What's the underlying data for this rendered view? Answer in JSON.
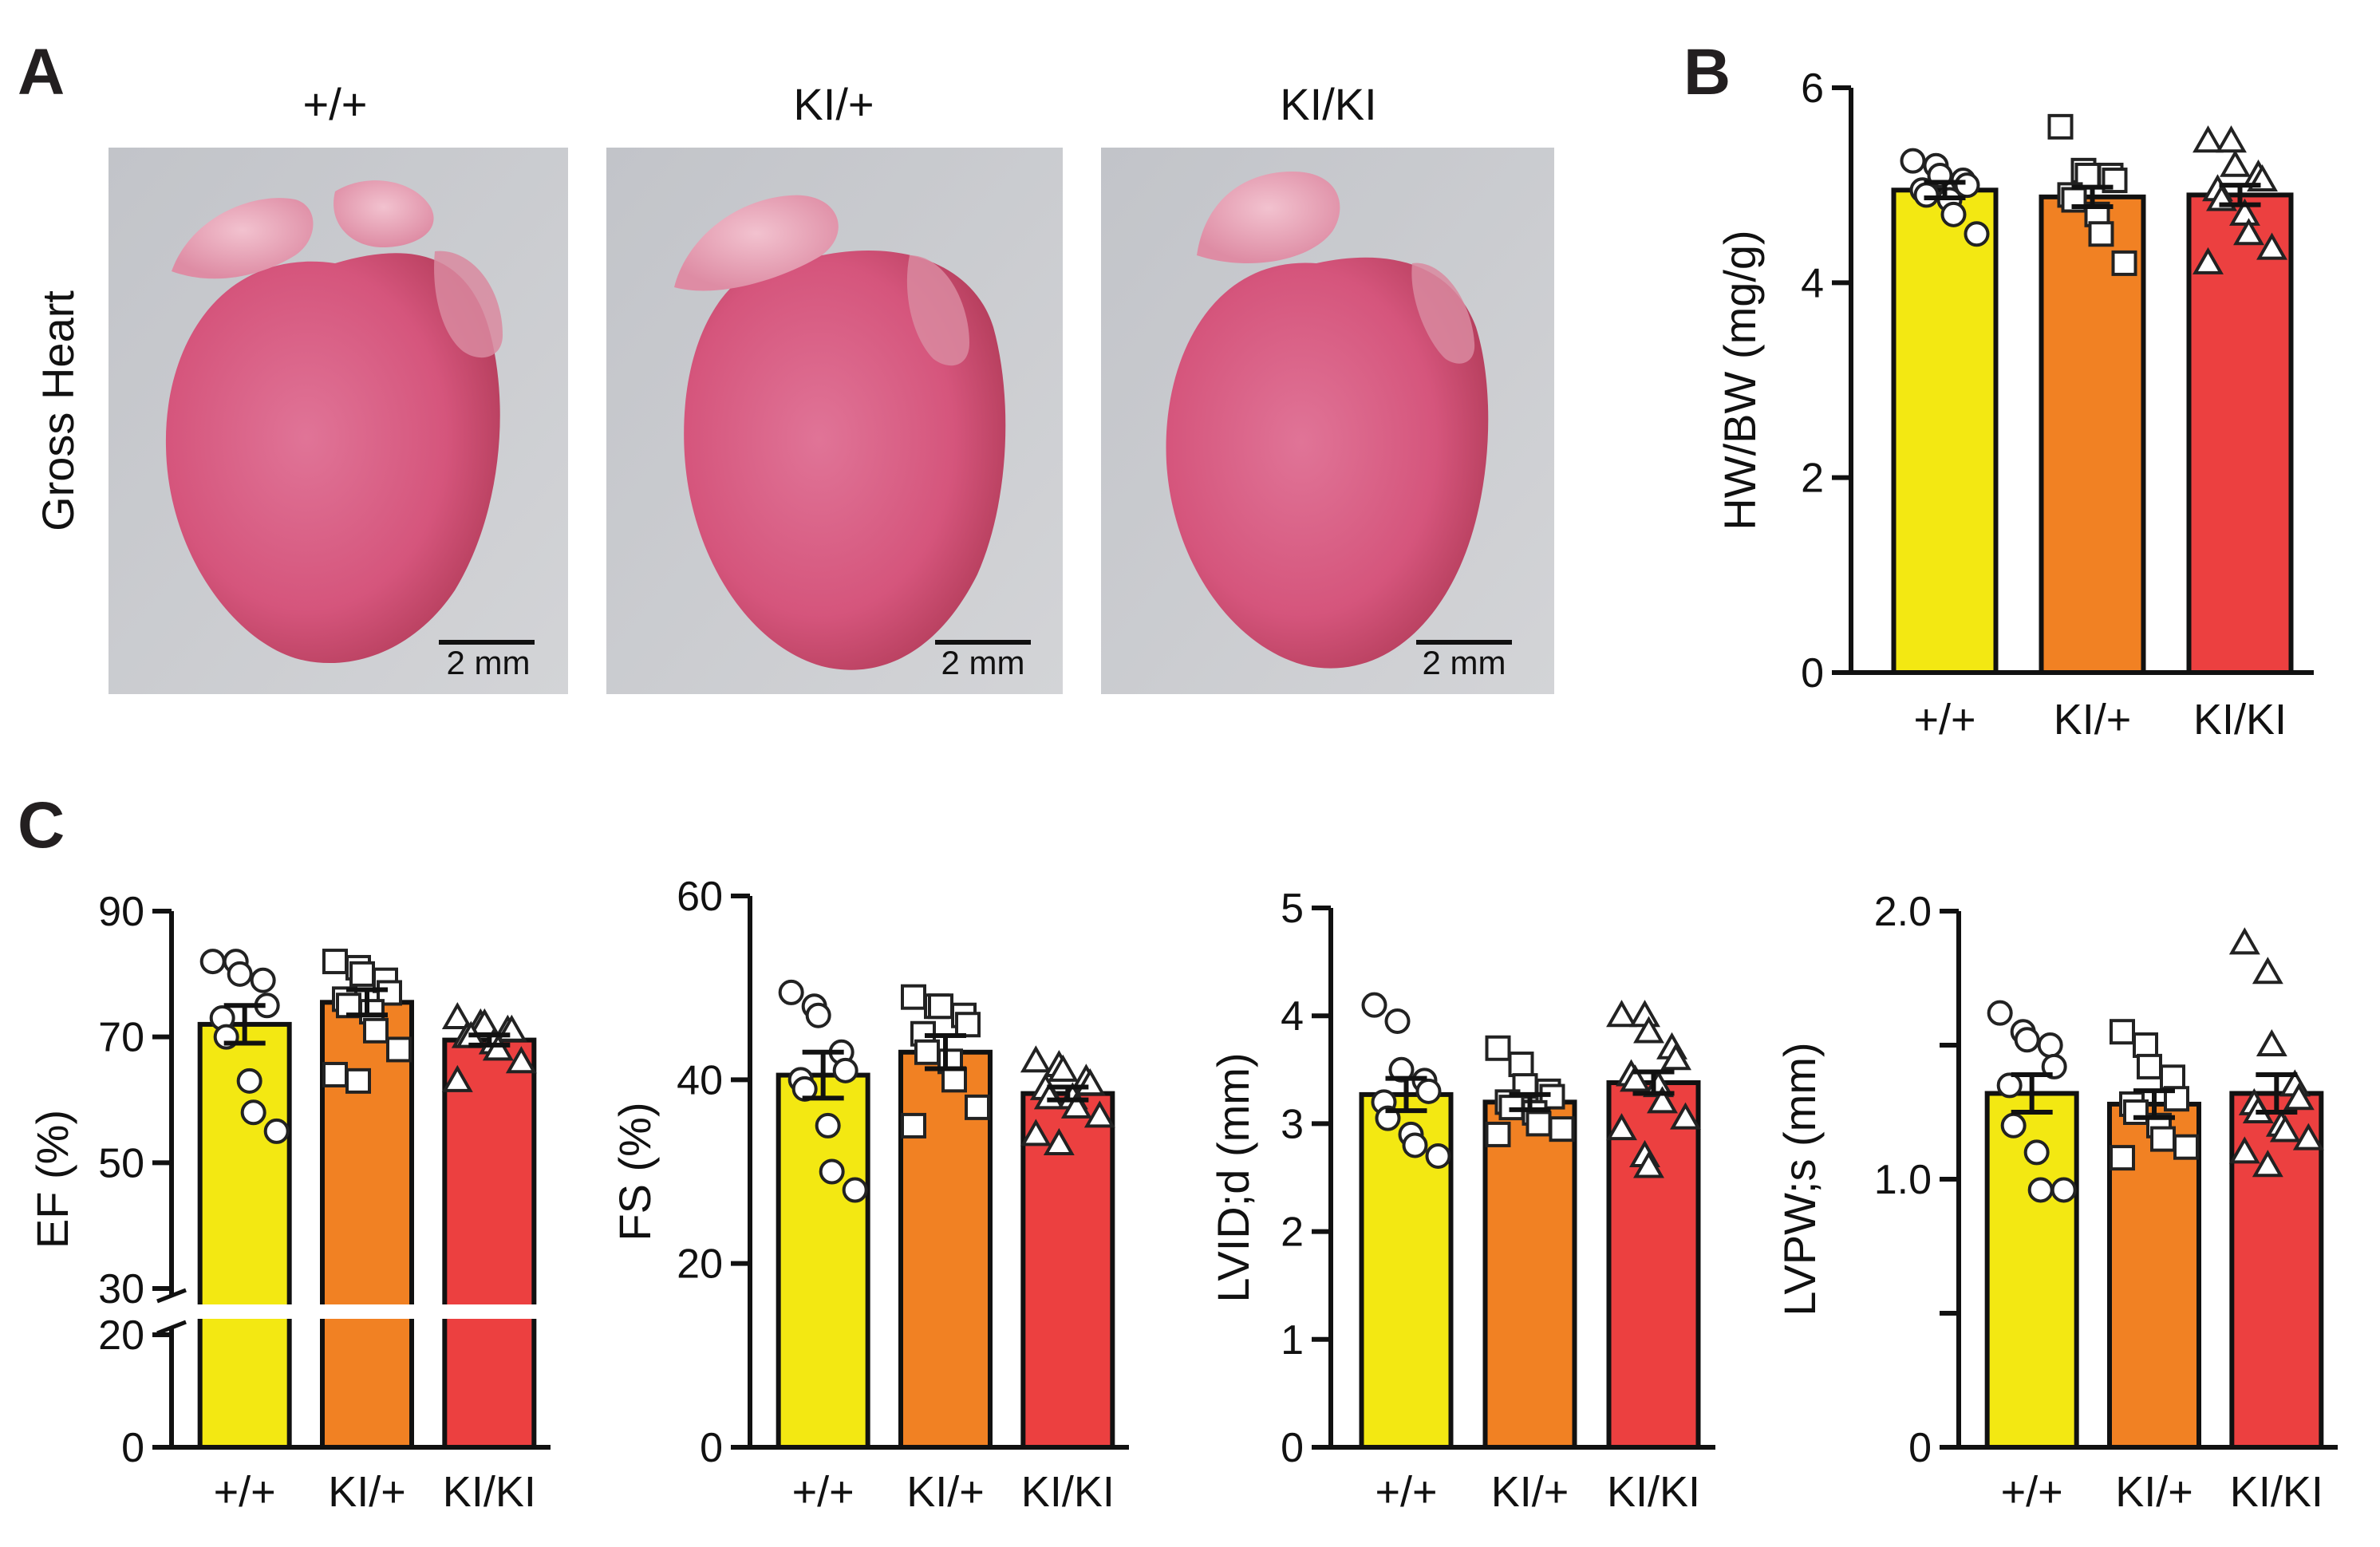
{
  "panels": {
    "A": {
      "letter": "A",
      "row_label": "Gross Heart",
      "images": [
        {
          "genotype": "+/+",
          "scale_bar": "2 mm"
        },
        {
          "genotype": "KI/+",
          "scale_bar": "2 mm"
        },
        {
          "genotype": "KI/KI",
          "scale_bar": "2 mm"
        }
      ]
    },
    "B": {
      "letter": "B"
    },
    "C": {
      "letter": "C"
    }
  },
  "colors": {
    "wt": "#f3e812",
    "het": "#f18123",
    "hom": "#ec4040",
    "axis": "#111111",
    "heart_base": "#d8577e",
    "heart_atrium": "#e79ab0",
    "photo_bg": "#c9cbcf"
  },
  "chart_data": [
    {
      "id": "hwbw",
      "type": "bar",
      "title": "",
      "ylabel": "HW/BW (mg/g)",
      "categories": [
        "+/+",
        "KI/+",
        "KI/KI"
      ],
      "ylim": [
        0,
        6
      ],
      "yticks": [
        0,
        2,
        4,
        6
      ],
      "ytick_labels": [
        "0",
        "2",
        "4",
        "6"
      ],
      "markers": [
        "circle",
        "square",
        "triangle"
      ],
      "means": [
        4.95,
        4.88,
        4.9
      ],
      "sem": [
        0.08,
        0.1,
        0.1
      ],
      "points": [
        [
          5.25,
          5.2,
          5.1,
          5.05,
          5.0,
          4.95,
          4.9,
          4.85,
          4.7,
          4.5
        ],
        [
          5.6,
          5.15,
          5.1,
          5.1,
          5.05,
          4.9,
          4.85,
          4.7,
          4.5,
          4.2
        ],
        [
          5.45,
          5.45,
          5.2,
          5.1,
          5.05,
          4.95,
          4.85,
          4.7,
          4.5,
          4.35,
          4.2
        ]
      ]
    },
    {
      "id": "ef",
      "type": "bar",
      "ylabel": "EF (%)",
      "categories": [
        "+/+",
        "KI/+",
        "KI/KI"
      ],
      "ylim": [
        0,
        90
      ],
      "axis_break": [
        20,
        30
      ],
      "yticks": [
        0,
        20,
        30,
        50,
        70,
        90
      ],
      "ytick_labels": [
        "0",
        "20",
        "30",
        "50",
        "70",
        "90"
      ],
      "markers": [
        "circle",
        "square",
        "triangle"
      ],
      "means": [
        72,
        75.5,
        69.5
      ],
      "sem": [
        3.0,
        2.0,
        0.8
      ],
      "points": [
        [
          82,
          82,
          80,
          79,
          75,
          73,
          70,
          63,
          58,
          55
        ],
        [
          82,
          81,
          80,
          79,
          77,
          76,
          75,
          74,
          71,
          68,
          64,
          63
        ],
        [
          73,
          72,
          72,
          71,
          71,
          70,
          70,
          69,
          68,
          66,
          63
        ]
      ]
    },
    {
      "id": "fs",
      "type": "bar",
      "ylabel": "FS (%)",
      "categories": [
        "+/+",
        "KI/+",
        "KI/KI"
      ],
      "ylim": [
        0,
        60
      ],
      "yticks": [
        0,
        20,
        40,
        60
      ],
      "ytick_labels": [
        "0",
        "20",
        "40",
        "60"
      ],
      "markers": [
        "circle",
        "square",
        "triangle"
      ],
      "means": [
        40.5,
        43,
        38.5
      ],
      "sem": [
        2.5,
        1.8,
        0.7
      ],
      "points": [
        [
          49.5,
          48,
          47,
          43,
          41,
          40,
          39,
          35,
          30,
          28
        ],
        [
          49,
          48,
          48,
          47,
          46,
          45,
          43,
          42,
          40,
          37,
          35
        ],
        [
          42,
          41.5,
          41,
          40,
          39.5,
          39,
          38,
          38,
          37,
          36,
          34,
          33
        ]
      ]
    },
    {
      "id": "lvidd",
      "type": "bar",
      "ylabel": "LVID;d (mm)",
      "categories": [
        "+/+",
        "KI/+",
        "KI/KI"
      ],
      "ylim": [
        0,
        5
      ],
      "yticks": [
        0,
        1,
        2,
        3,
        4,
        5
      ],
      "ytick_labels": [
        "0",
        "1",
        "2",
        "3",
        "4",
        "5"
      ],
      "markers": [
        "circle",
        "square",
        "triangle"
      ],
      "means": [
        3.27,
        3.2,
        3.38
      ],
      "sem": [
        0.15,
        0.07,
        0.1
      ],
      "points": [
        [
          4.1,
          3.95,
          3.5,
          3.4,
          3.3,
          3.2,
          3.05,
          2.9,
          2.8,
          2.7
        ],
        [
          3.7,
          3.55,
          3.35,
          3.3,
          3.25,
          3.2,
          3.15,
          3.1,
          3.0,
          2.95,
          2.9
        ],
        [
          4.0,
          4.0,
          3.85,
          3.7,
          3.6,
          3.45,
          3.4,
          3.35,
          3.2,
          3.05,
          2.95,
          2.7,
          2.6
        ]
      ]
    },
    {
      "id": "lvpws",
      "type": "bar",
      "ylabel": "LVPW;s (mm)",
      "categories": [
        "+/+",
        "KI/+",
        "KI/KI"
      ],
      "ylim": [
        0,
        2.0
      ],
      "yticks": [
        0,
        0.5,
        1.0,
        1.5,
        2.0
      ],
      "ytick_labels": [
        "0",
        "",
        "1.0",
        "",
        "2.0"
      ],
      "markers": [
        "circle",
        "square",
        "triangle"
      ],
      "means": [
        1.32,
        1.28,
        1.32
      ],
      "sem": [
        0.07,
        0.05,
        0.07
      ],
      "points": [
        [
          1.62,
          1.55,
          1.52,
          1.5,
          1.42,
          1.35,
          1.2,
          1.1,
          0.96,
          0.96
        ],
        [
          1.55,
          1.5,
          1.42,
          1.38,
          1.3,
          1.28,
          1.25,
          1.2,
          1.15,
          1.12,
          1.08
        ],
        [
          1.88,
          1.77,
          1.5,
          1.35,
          1.3,
          1.28,
          1.25,
          1.2,
          1.18,
          1.15,
          1.1,
          1.05
        ]
      ]
    }
  ]
}
